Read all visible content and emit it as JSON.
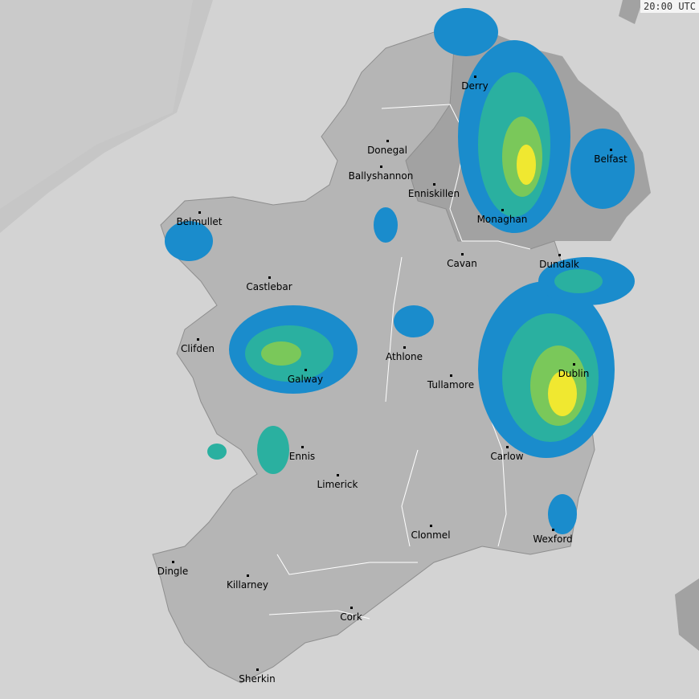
{
  "timestamp": "20:00 UTC",
  "colors": {
    "sea": "#d3d3d3",
    "out_of_range": "#c6c6c6",
    "land": "#b5b5b5",
    "other_land": "#a2a2a2",
    "rain_light": "#1a8ccc",
    "rain_mid": "#2ab0a0",
    "rain_green": "#7ac85a",
    "rain_heavy": "#f0e830"
  },
  "cities": [
    "Derry",
    "Donegal",
    "Belfast",
    "Ballyshannon",
    "Enniskillen",
    "Belmullet",
    "Monaghan",
    "Cavan",
    "Dundalk",
    "Castlebar",
    "Clifden",
    "Athlone",
    "Galway",
    "Dublin",
    "Tullamore",
    "Ennis",
    "Carlow",
    "Limerick",
    "Clonmel",
    "Wexford",
    "Dingle",
    "Killarney",
    "Cork",
    "Sherkin"
  ]
}
